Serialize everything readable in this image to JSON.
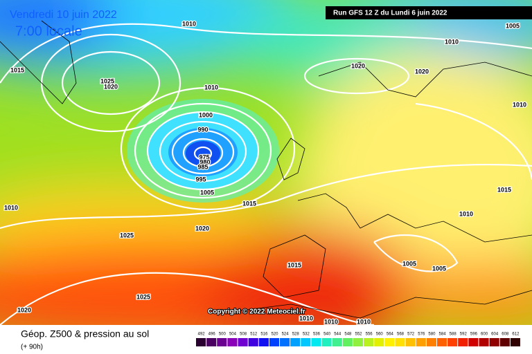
{
  "header": {
    "date": "Vendredi 10 juin 2022",
    "time": "7:00 locale",
    "run": "Run GFS 12 Z du Lundi 6 juin 2022"
  },
  "isobar_labels": [
    "1010",
    "1005",
    "1010",
    "1015",
    "1025",
    "1020",
    "1010",
    "1020",
    "1020",
    "1010",
    "1000",
    "990",
    "975",
    "980",
    "985",
    "995",
    "1005",
    "1015",
    "1015",
    "1010",
    "1010",
    "1020",
    "1025",
    "1015",
    "1005",
    "1005",
    "1025",
    "1020",
    "1010",
    "1010",
    "1010"
  ],
  "copyright": "Copyright © 2022 Meteociel.fr",
  "footer": {
    "title": "Géop. Z500 & pression au sol",
    "lead": "(+ 90h)"
  },
  "legend": {
    "values": [
      492,
      496,
      500,
      504,
      508,
      512,
      516,
      520,
      524,
      528,
      532,
      536,
      540,
      544,
      548,
      552,
      556,
      560,
      564,
      568,
      572,
      576,
      580,
      584,
      588,
      592,
      596,
      600,
      604,
      608,
      612
    ],
    "colors": [
      "#2a0030",
      "#4a0060",
      "#6a0090",
      "#8a00b8",
      "#7000d0",
      "#4000e0",
      "#1010f0",
      "#0040ff",
      "#0070ff",
      "#00a0ff",
      "#00c8ff",
      "#00e8f0",
      "#20f0c0",
      "#40f090",
      "#60f060",
      "#90f040",
      "#b8f020",
      "#e0f000",
      "#fff000",
      "#ffe000",
      "#ffc000",
      "#ffa000",
      "#ff8000",
      "#ff6000",
      "#ff4000",
      "#f02000",
      "#d00000",
      "#b00000",
      "#900000",
      "#600000",
      "#300000"
    ]
  }
}
